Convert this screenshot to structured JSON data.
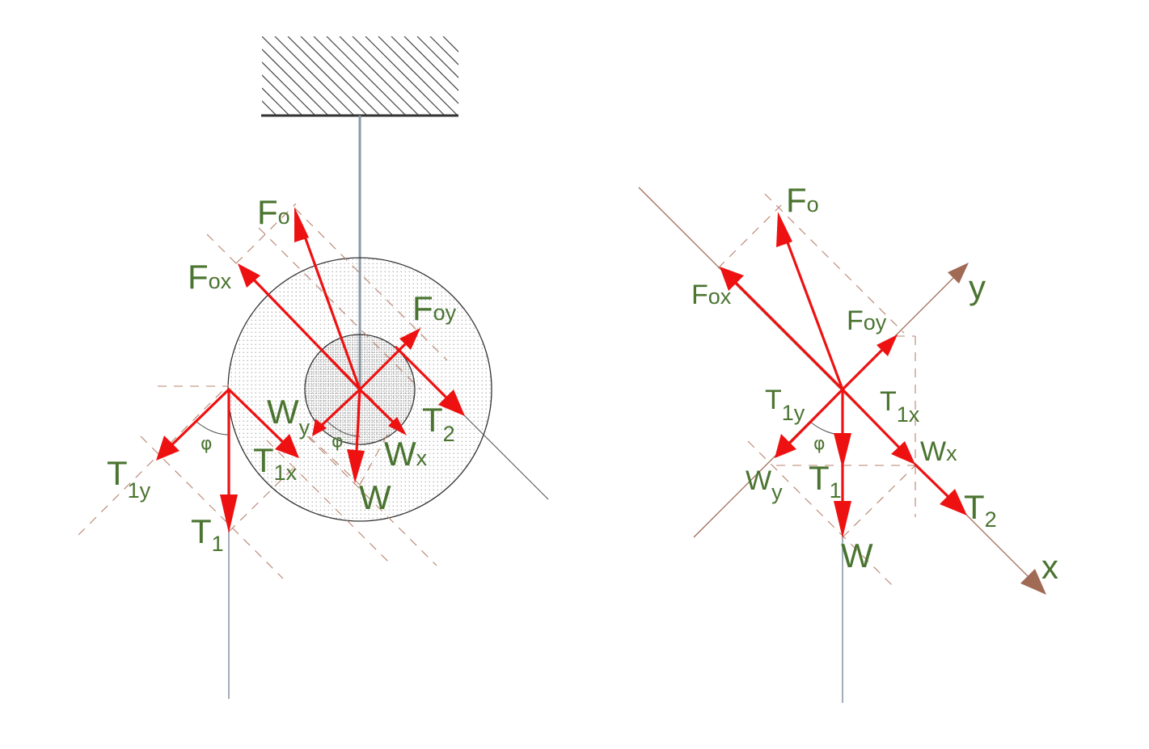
{
  "colors": {
    "force": "#ee1111",
    "label": "#4a7430",
    "axis": "#a06a55",
    "dashed_guide": "#b8826e",
    "outline": "#333333",
    "string": "#8a9aa8"
  },
  "left_figure": {
    "labels": {
      "Fo": "F",
      "Fo_sub": "o",
      "Fox": "F",
      "Fox_sub": "ox",
      "Foy": "F",
      "Foy_sub": "oy",
      "Wy": "W",
      "Wy_sub": "y",
      "Wx": "W",
      "Wx_sub": "x",
      "W": "W",
      "T2": "T",
      "T2_sub": "2",
      "T1y": "T",
      "T1y_sub": "1y",
      "T1x": "T",
      "T1x_sub": "1x",
      "T1": "T",
      "T1_sub": "1",
      "phi_left": "φ",
      "phi_center": "φ"
    }
  },
  "right_figure": {
    "labels": {
      "Fo": "F",
      "Fo_sub": "o",
      "Fox": "F",
      "Fox_sub": "ox",
      "Foy": "F",
      "Foy_sub": "oy",
      "T1y": "T",
      "T1y_sub": "1y",
      "T1x": "T",
      "T1x_sub": "1x",
      "Wx": "W",
      "Wx_sub": "x",
      "Wy": "W",
      "Wy_sub": "y",
      "T1": "T",
      "T1_sub": "1",
      "T2": "T",
      "T2_sub": "2",
      "W": "W",
      "phi": "φ",
      "axis_x": "x",
      "axis_y": "y"
    }
  }
}
